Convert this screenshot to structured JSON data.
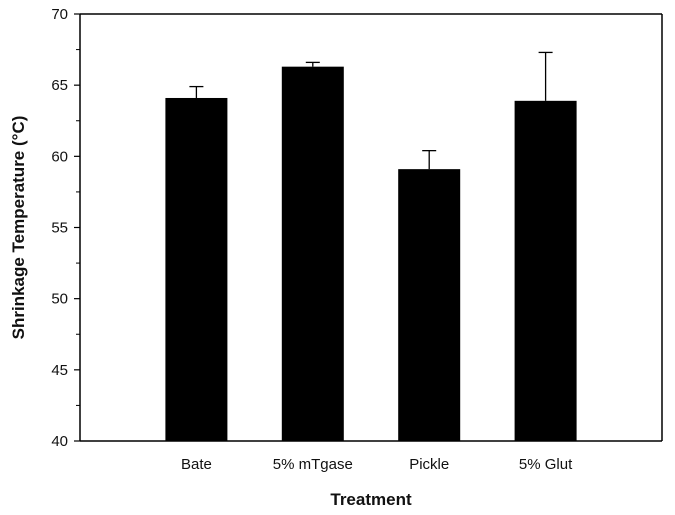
{
  "chart_data": {
    "type": "bar",
    "title": "",
    "xlabel": "Treatment",
    "ylabel": "Shrinkage Temperature (°C)",
    "categories": [
      "Bate",
      "5% mTgase",
      "Pickle",
      "5% Glut"
    ],
    "values": [
      64.1,
      66.3,
      59.1,
      63.9
    ],
    "error_upper": [
      0.8,
      0.3,
      1.3,
      3.4
    ],
    "ylim": [
      40,
      70
    ],
    "yticks": [
      40,
      45,
      50,
      55,
      60,
      65,
      70
    ],
    "grid": false,
    "legend": "none",
    "bar_color": "#000000"
  }
}
